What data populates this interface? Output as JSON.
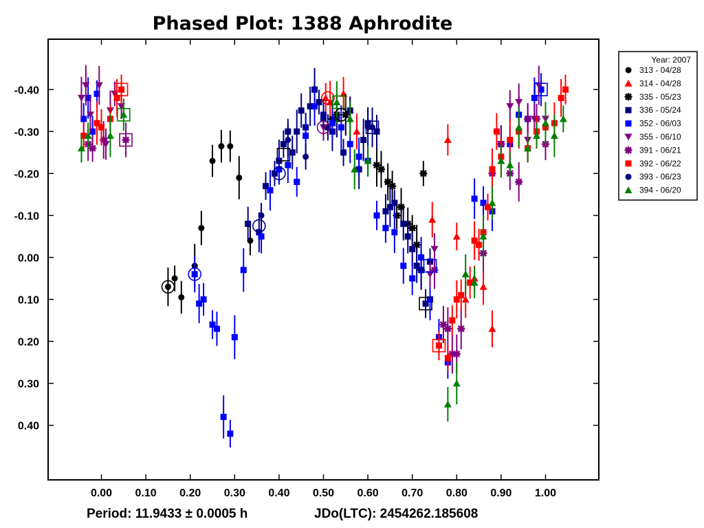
{
  "chart_data": {
    "type": "scatter",
    "title": "Phased Plot: 1388 Aphrodite",
    "footer_period": "Period: 11.9433 ± 0.0005 h",
    "footer_epoch": "JDo(LTC): 2454262.185608",
    "x_ticks": [
      "0.00",
      "0.10",
      "0.20",
      "0.30",
      "0.40",
      "0.50",
      "0.60",
      "0.70",
      "0.80",
      "0.90",
      "1.00"
    ],
    "y_ticks": [
      "-0.40",
      "-0.30",
      "-0.20",
      "-0.10",
      "0.00",
      "0.10",
      "0.20",
      "0.30",
      "0.40"
    ],
    "xlim": [
      -0.12,
      1.12
    ],
    "ylim": [
      -0.52,
      0.53
    ],
    "y_inverted": true,
    "legend": {
      "title": "Year: 2007",
      "placement": "outside-right-top"
    },
    "series": [
      {
        "name": "313 - 04/28",
        "marker": "circle",
        "color": "#000000",
        "points": [
          [
            0.15,
            0.07
          ],
          [
            0.165,
            0.05
          ],
          [
            0.18,
            0.095
          ],
          [
            0.21,
            0.02
          ],
          [
            0.225,
            -0.07
          ],
          [
            0.25,
            -0.23
          ],
          [
            0.27,
            -0.265
          ],
          [
            0.29,
            -0.265
          ],
          [
            0.31,
            -0.19
          ],
          [
            0.335,
            -0.04
          ]
        ]
      },
      {
        "name": "314 - 04/28",
        "marker": "triangle",
        "color": "#ff0000",
        "points": [
          [
            0.505,
            -0.38
          ],
          [
            0.515,
            -0.37
          ],
          [
            0.53,
            -0.33
          ],
          [
            0.545,
            -0.39
          ],
          [
            0.56,
            -0.35
          ],
          [
            0.575,
            -0.3
          ],
          [
            0.745,
            -0.09
          ],
          [
            0.78,
            -0.28
          ],
          [
            0.8,
            -0.05
          ],
          [
            0.82,
            0.1
          ],
          [
            0.84,
            0.05
          ],
          [
            0.86,
            0.07
          ],
          [
            0.88,
            0.17
          ]
        ]
      },
      {
        "name": "335 - 05/23",
        "marker": "asterisk",
        "color": "#000000",
        "points": [
          [
            0.52,
            -0.33
          ],
          [
            0.53,
            -0.34
          ],
          [
            0.55,
            -0.34
          ],
          [
            0.62,
            -0.22
          ],
          [
            0.63,
            -0.21
          ],
          [
            0.645,
            -0.18
          ],
          [
            0.655,
            -0.17
          ],
          [
            0.665,
            -0.1
          ],
          [
            0.675,
            -0.12
          ],
          [
            0.69,
            -0.08
          ],
          [
            0.7,
            -0.07
          ],
          [
            0.71,
            -0.03
          ],
          [
            0.72,
            0.03
          ],
          [
            0.725,
            -0.2
          ]
        ]
      },
      {
        "name": "336 - 05/24",
        "marker": "square",
        "color": "#000080",
        "points": [
          [
            0.33,
            -0.08
          ],
          [
            0.355,
            -0.06
          ],
          [
            0.37,
            -0.17
          ],
          [
            0.39,
            -0.2
          ],
          [
            0.4,
            -0.23
          ],
          [
            0.41,
            -0.27
          ],
          [
            0.42,
            -0.3
          ],
          [
            0.43,
            -0.25
          ],
          [
            0.44,
            -0.3
          ],
          [
            0.45,
            -0.35
          ],
          [
            0.46,
            -0.31
          ],
          [
            0.47,
            -0.36
          ],
          [
            0.48,
            -0.4
          ],
          [
            0.49,
            -0.37
          ],
          [
            0.5,
            -0.33
          ],
          [
            0.51,
            -0.31
          ],
          [
            0.52,
            -0.3
          ],
          [
            0.53,
            -0.33
          ],
          [
            0.545,
            -0.25
          ],
          [
            0.56,
            -0.35
          ],
          [
            0.58,
            -0.21
          ],
          [
            0.59,
            -0.28
          ],
          [
            0.6,
            -0.32
          ],
          [
            0.62,
            -0.3
          ],
          [
            0.64,
            -0.11
          ],
          [
            0.65,
            -0.12
          ],
          [
            0.66,
            -0.13
          ],
          [
            0.68,
            -0.08
          ],
          [
            0.69,
            -0.05
          ],
          [
            0.7,
            -0.02
          ],
          [
            0.71,
            0.02
          ],
          [
            0.72,
            0.03
          ],
          [
            0.73,
            0.11
          ],
          [
            0.74,
            0.01
          ]
        ]
      },
      {
        "name": "352 - 06/03",
        "marker": "square",
        "color": "#0000ff",
        "points": [
          [
            -0.04,
            -0.33
          ],
          [
            -0.03,
            -0.38
          ],
          [
            -0.02,
            -0.3
          ],
          [
            -0.01,
            -0.39
          ],
          [
            0.21,
            0.04
          ],
          [
            0.22,
            0.11
          ],
          [
            0.23,
            0.1
          ],
          [
            0.25,
            0.16
          ],
          [
            0.26,
            0.17
          ],
          [
            0.275,
            0.38
          ],
          [
            0.29,
            0.42
          ],
          [
            0.3,
            0.19
          ],
          [
            0.32,
            0.03
          ],
          [
            0.36,
            -0.05
          ],
          [
            0.38,
            -0.16
          ],
          [
            0.4,
            -0.21
          ],
          [
            0.42,
            -0.22
          ],
          [
            0.44,
            -0.18
          ],
          [
            0.46,
            -0.29
          ],
          [
            0.48,
            -0.36
          ],
          [
            0.5,
            -0.34
          ],
          [
            0.52,
            -0.32
          ],
          [
            0.54,
            -0.31
          ],
          [
            0.56,
            -0.27
          ],
          [
            0.58,
            -0.24
          ],
          [
            0.6,
            -0.23
          ],
          [
            0.62,
            -0.1
          ],
          [
            0.64,
            -0.07
          ],
          [
            0.66,
            -0.06
          ],
          [
            0.68,
            0.02
          ],
          [
            0.7,
            0.05
          ],
          [
            0.72,
            0.0
          ],
          [
            0.74,
            0.1
          ],
          [
            0.76,
            0.19
          ],
          [
            0.78,
            0.25
          ],
          [
            0.84,
            -0.14
          ],
          [
            0.86,
            -0.13
          ],
          [
            0.88,
            -0.11
          ],
          [
            0.9,
            -0.27
          ],
          [
            0.92,
            -0.27
          ],
          [
            0.94,
            -0.34
          ],
          [
            0.96,
            -0.33
          ],
          [
            0.975,
            -0.38
          ],
          [
            0.99,
            -0.4
          ]
        ]
      },
      {
        "name": "355 - 06/10",
        "marker": "triangle-down",
        "color": "#800080",
        "points": [
          [
            -0.045,
            -0.38
          ],
          [
            -0.035,
            -0.41
          ],
          [
            -0.025,
            -0.34
          ],
          [
            -0.005,
            -0.41
          ],
          [
            0.01,
            -0.27
          ],
          [
            0.02,
            -0.35
          ],
          [
            0.03,
            -0.39
          ],
          [
            0.045,
            -0.36
          ],
          [
            0.5,
            -0.31
          ],
          [
            0.74,
            0.04
          ],
          [
            0.75,
            -0.02
          ],
          [
            0.9,
            -0.27
          ],
          [
            0.92,
            -0.36
          ],
          [
            0.94,
            -0.37
          ],
          [
            0.96,
            -0.28
          ],
          [
            0.975,
            -0.33
          ],
          [
            0.985,
            -0.41
          ],
          [
            1.0,
            -0.33
          ]
        ]
      },
      {
        "name": "391 - 06/21",
        "marker": "asterisk",
        "color": "#800080",
        "points": [
          [
            -0.03,
            -0.27
          ],
          [
            -0.02,
            -0.26
          ],
          [
            0.005,
            -0.28
          ],
          [
            0.055,
            -0.28
          ],
          [
            0.75,
            0.03
          ],
          [
            0.77,
            0.16
          ],
          [
            0.78,
            0.17
          ],
          [
            0.79,
            0.23
          ],
          [
            0.8,
            0.23
          ],
          [
            0.81,
            0.17
          ],
          [
            0.86,
            -0.01
          ],
          [
            0.88,
            -0.2
          ],
          [
            0.9,
            -0.27
          ],
          [
            0.92,
            -0.2
          ],
          [
            0.94,
            -0.18
          ],
          [
            0.96,
            -0.33
          ],
          [
            0.98,
            -0.33
          ],
          [
            1.0,
            -0.27
          ]
        ]
      },
      {
        "name": "392 - 06/22",
        "marker": "square",
        "color": "#ff0000",
        "points": [
          [
            -0.04,
            -0.29
          ],
          [
            -0.01,
            -0.32
          ],
          [
            0.0,
            -0.31
          ],
          [
            0.02,
            -0.33
          ],
          [
            0.035,
            -0.38
          ],
          [
            0.045,
            -0.4
          ],
          [
            0.76,
            0.21
          ],
          [
            0.78,
            0.24
          ],
          [
            0.79,
            0.15
          ],
          [
            0.8,
            0.1
          ],
          [
            0.81,
            0.09
          ],
          [
            0.83,
            0.06
          ],
          [
            0.84,
            -0.04
          ],
          [
            0.85,
            -0.03
          ],
          [
            0.86,
            -0.06
          ],
          [
            0.87,
            -0.12
          ],
          [
            0.88,
            -0.21
          ],
          [
            0.89,
            -0.3
          ],
          [
            0.9,
            -0.24
          ],
          [
            0.92,
            -0.28
          ],
          [
            0.94,
            -0.3
          ],
          [
            0.96,
            -0.26
          ],
          [
            0.98,
            -0.3
          ],
          [
            1.0,
            -0.31
          ],
          [
            1.02,
            -0.32
          ],
          [
            1.035,
            -0.38
          ],
          [
            1.045,
            -0.4
          ]
        ]
      },
      {
        "name": "393 - 06/23",
        "marker": "circle",
        "color": "#000080",
        "points": [
          [
            0.36,
            -0.1
          ],
          [
            0.42,
            -0.28
          ],
          [
            0.46,
            -0.24
          ],
          [
            0.5,
            -0.34
          ],
          [
            0.6,
            -0.31
          ],
          [
            0.61,
            -0.31
          ]
        ]
      },
      {
        "name": "394 - 06/20",
        "marker": "triangle",
        "color": "#008000",
        "points": [
          [
            -0.045,
            -0.26
          ],
          [
            -0.03,
            -0.29
          ],
          [
            0.02,
            -0.29
          ],
          [
            0.05,
            -0.34
          ],
          [
            0.53,
            -0.37
          ],
          [
            0.56,
            -0.33
          ],
          [
            0.57,
            -0.21
          ],
          [
            0.6,
            -0.23
          ],
          [
            0.78,
            0.35
          ],
          [
            0.8,
            0.3
          ],
          [
            0.82,
            0.04
          ],
          [
            0.84,
            0.06
          ],
          [
            0.86,
            -0.05
          ],
          [
            0.88,
            -0.13
          ],
          [
            0.9,
            -0.23
          ],
          [
            0.92,
            -0.22
          ],
          [
            0.94,
            -0.31
          ],
          [
            0.96,
            -0.26
          ],
          [
            0.98,
            -0.29
          ],
          [
            1.0,
            -0.32
          ],
          [
            1.02,
            -0.29
          ],
          [
            1.04,
            -0.33
          ]
        ]
      }
    ],
    "highlighted": [
      {
        "marker": "circle",
        "color": "#000000",
        "x": 0.15,
        "y": 0.07
      },
      {
        "marker": "circle",
        "color": "#0000ff",
        "x": 0.21,
        "y": 0.04
      },
      {
        "marker": "circle",
        "color": "#000080",
        "x": 0.355,
        "y": -0.075
      },
      {
        "marker": "circle",
        "color": "#000080",
        "x": 0.4,
        "y": -0.2
      },
      {
        "marker": "square",
        "color": "#000000",
        "x": 0.41,
        "y": -0.245
      },
      {
        "marker": "circle",
        "color": "#ff0000",
        "x": 0.51,
        "y": -0.38
      },
      {
        "marker": "circle",
        "color": "#800080",
        "x": 0.5,
        "y": -0.31
      },
      {
        "marker": "square",
        "color": "#008000",
        "x": 0.535,
        "y": -0.37
      },
      {
        "marker": "circle",
        "color": "#000000",
        "x": 0.54,
        "y": -0.34
      },
      {
        "marker": "square",
        "color": "#000080",
        "x": 0.61,
        "y": -0.31
      },
      {
        "marker": "square",
        "color": "#000000",
        "x": 0.73,
        "y": 0.11
      },
      {
        "marker": "square",
        "color": "#0000ff",
        "x": 0.74,
        "y": 0.02
      },
      {
        "marker": "square",
        "color": "#ff0000",
        "x": 0.76,
        "y": 0.21
      },
      {
        "marker": "square",
        "color": "#ff0000",
        "x": 0.045,
        "y": -0.4
      },
      {
        "marker": "square",
        "color": "#008000",
        "x": 0.05,
        "y": -0.34
      },
      {
        "marker": "square",
        "color": "#800080",
        "x": 0.055,
        "y": -0.28
      },
      {
        "marker": "square",
        "color": "#0000ff",
        "x": 0.99,
        "y": -0.4
      }
    ]
  }
}
